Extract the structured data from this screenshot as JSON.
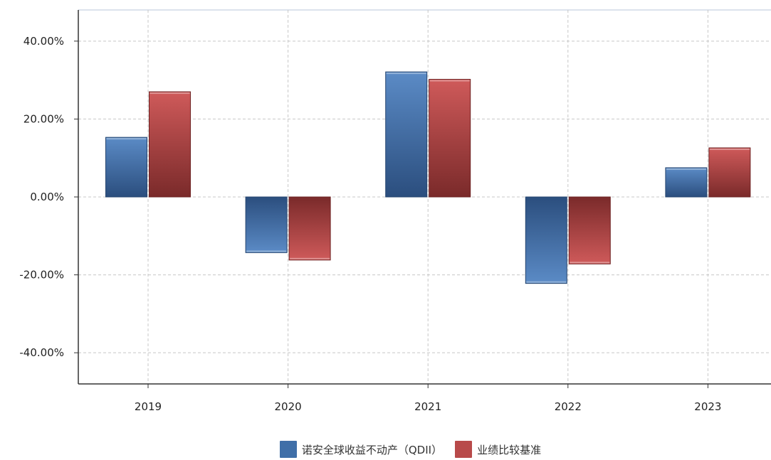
{
  "chart_data": {
    "type": "bar",
    "categories": [
      "2019",
      "2020",
      "2021",
      "2022",
      "2023"
    ],
    "series": [
      {
        "name": "诺安全球收益不动产（QDII）",
        "color": "#3f6fa8",
        "values": [
          15.3,
          -14.3,
          32.1,
          -22.2,
          7.5
        ]
      },
      {
        "name": "业绩比较基准",
        "color": "#b84a4a",
        "values": [
          27.0,
          -16.2,
          30.2,
          -17.2,
          12.6
        ]
      }
    ],
    "y_ticks": [
      "40.00%",
      "20.00%",
      "0.00%",
      "-20.00%",
      "-40.00%"
    ],
    "y_tick_values": [
      40,
      20,
      0,
      -20,
      -40
    ],
    "ylim": [
      -48,
      48
    ],
    "grid": true,
    "legend_position": "bottom"
  },
  "legend": {
    "items": [
      {
        "label": "诺安全球收益不动产（QDII）",
        "color": "#3f6fa8"
      },
      {
        "label": "业绩比较基准",
        "color": "#b84a4a"
      }
    ]
  }
}
